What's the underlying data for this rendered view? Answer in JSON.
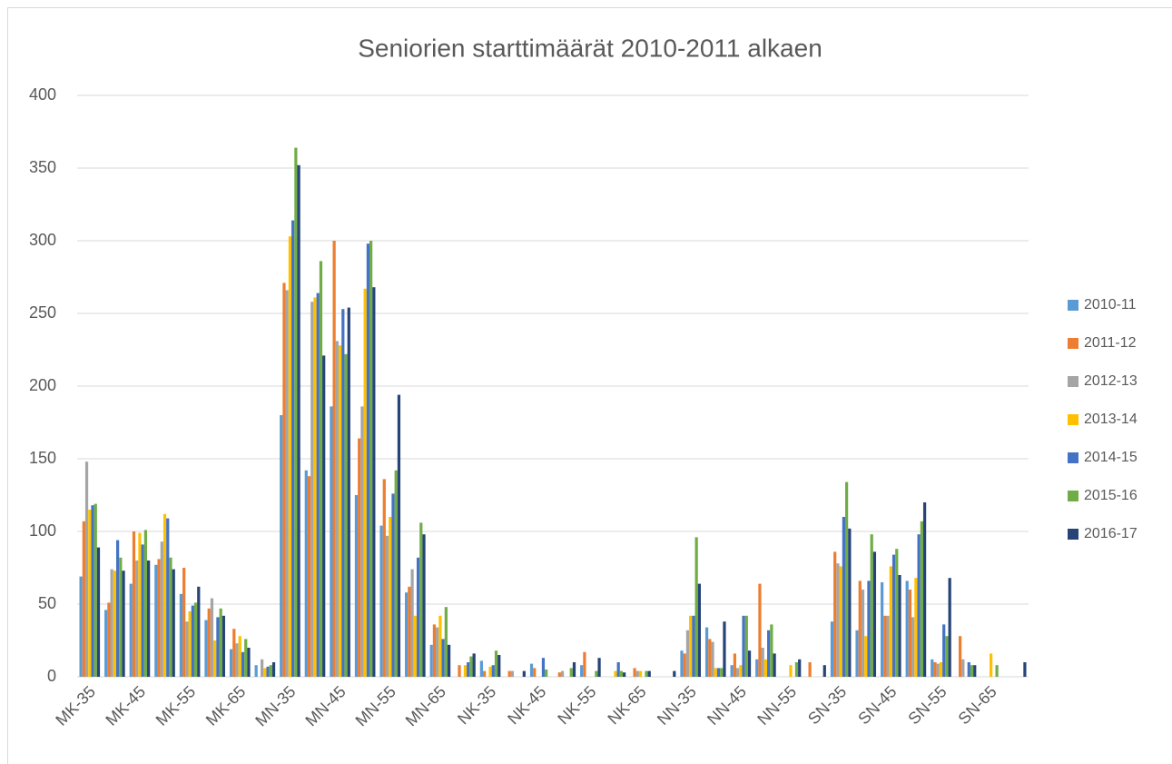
{
  "chart_data": {
    "type": "bar",
    "title": "Seniorien starttimäärät 2010-2011 alkaen",
    "categories": [
      "MK-35",
      null,
      "MK-45",
      null,
      "MK-55",
      null,
      "MK-65",
      null,
      "MN-35",
      null,
      "MN-45",
      null,
      "MN-55",
      null,
      "MN-65",
      null,
      "NK-35",
      null,
      "NK-45",
      null,
      "NK-55",
      null,
      "NK-65",
      null,
      "NN-35",
      null,
      "NN-45",
      null,
      "NN-55",
      null,
      "SN-35",
      null,
      "SN-45",
      null,
      "SN-55",
      null,
      "SN-65",
      null
    ],
    "series": [
      {
        "name": "2010-11",
        "color": "#5b9bd5",
        "values": [
          69,
          46,
          64,
          77,
          57,
          39,
          19,
          8,
          180,
          142,
          186,
          125,
          104,
          58,
          22,
          0,
          11,
          0,
          9,
          0,
          8,
          0,
          0,
          0,
          18,
          34,
          8,
          12,
          0,
          0,
          38,
          32,
          65,
          66,
          12,
          0,
          0,
          0
        ]
      },
      {
        "name": "2011-12",
        "color": "#ed7d31",
        "values": [
          107,
          51,
          100,
          81,
          75,
          47,
          33,
          0,
          271,
          138,
          300,
          164,
          136,
          62,
          36,
          8,
          4,
          4,
          6,
          3,
          17,
          0,
          6,
          0,
          16,
          26,
          16,
          64,
          0,
          10,
          86,
          66,
          42,
          60,
          10,
          28,
          0,
          0
        ]
      },
      {
        "name": "2012-13",
        "color": "#a5a5a5",
        "values": [
          148,
          74,
          80,
          93,
          38,
          54,
          23,
          12,
          266,
          258,
          231,
          186,
          97,
          74,
          34,
          0,
          0,
          4,
          0,
          4,
          0,
          0,
          4,
          0,
          32,
          24,
          6,
          20,
          0,
          0,
          78,
          60,
          42,
          41,
          9,
          12,
          0,
          0
        ]
      },
      {
        "name": "2013-14",
        "color": "#ffc000",
        "values": [
          115,
          73,
          99,
          112,
          45,
          25,
          28,
          6,
          303,
          261,
          228,
          267,
          110,
          42,
          42,
          8,
          7,
          0,
          0,
          0,
          0,
          4,
          4,
          0,
          42,
          6,
          8,
          12,
          8,
          0,
          76,
          28,
          76,
          68,
          10,
          0,
          16,
          0
        ]
      },
      {
        "name": "2014-15",
        "color": "#4472c4",
        "values": [
          118,
          94,
          91,
          109,
          49,
          41,
          17,
          7,
          314,
          264,
          253,
          298,
          126,
          82,
          26,
          10,
          8,
          0,
          13,
          0,
          0,
          10,
          0,
          0,
          42,
          6,
          42,
          32,
          0,
          0,
          110,
          66,
          84,
          98,
          36,
          10,
          0,
          0
        ]
      },
      {
        "name": "2015-16",
        "color": "#70ad47",
        "values": [
          119,
          82,
          101,
          82,
          51,
          47,
          26,
          8,
          364,
          286,
          222,
          300,
          142,
          106,
          48,
          14,
          18,
          0,
          5,
          6,
          4,
          4,
          4,
          0,
          96,
          6,
          42,
          36,
          10,
          0,
          134,
          98,
          88,
          107,
          28,
          8,
          8,
          0
        ]
      },
      {
        "name": "2016-17",
        "color": "#264478",
        "values": [
          89,
          73,
          80,
          74,
          62,
          42,
          20,
          10,
          352,
          221,
          254,
          268,
          194,
          98,
          22,
          16,
          15,
          4,
          0,
          10,
          13,
          3,
          4,
          4,
          64,
          38,
          18,
          16,
          12,
          8,
          102,
          86,
          70,
          120,
          68,
          8,
          0,
          10
        ]
      }
    ],
    "ylim": [
      0,
      400
    ],
    "yticks": [
      0,
      50,
      100,
      150,
      200,
      250,
      300,
      350,
      400
    ],
    "grid": true,
    "legend": "right"
  }
}
